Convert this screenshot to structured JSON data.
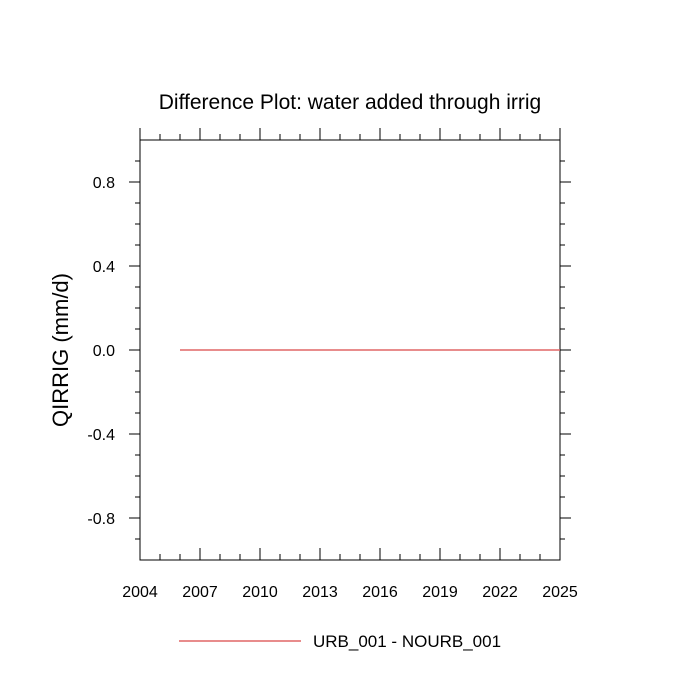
{
  "chart_data": {
    "type": "line",
    "title": "Difference Plot: water added through irrig",
    "xlabel": "",
    "ylabel": "QIRRIG  (mm/d)",
    "xlim": [
      2004,
      2025
    ],
    "ylim": [
      -1.0,
      1.0
    ],
    "x_ticks": [
      2004,
      2007,
      2010,
      2013,
      2016,
      2019,
      2022,
      2025
    ],
    "x_tick_labels": [
      "2004",
      "2007",
      "2010",
      "2013",
      "2016",
      "2019",
      "2022",
      "2025"
    ],
    "y_ticks": [
      0.8,
      0.4,
      0.0,
      -0.4,
      -0.8
    ],
    "y_tick_labels": [
      "0.8",
      "0.4",
      "0.0",
      "-0.4",
      "-0.8"
    ],
    "grid": false,
    "legend_position": "bottom-center",
    "series": [
      {
        "name": "URB_001 - NOURB_001",
        "color": "#e06666",
        "x": [
          2006,
          2025
        ],
        "y": [
          0.0,
          0.0
        ]
      }
    ]
  }
}
